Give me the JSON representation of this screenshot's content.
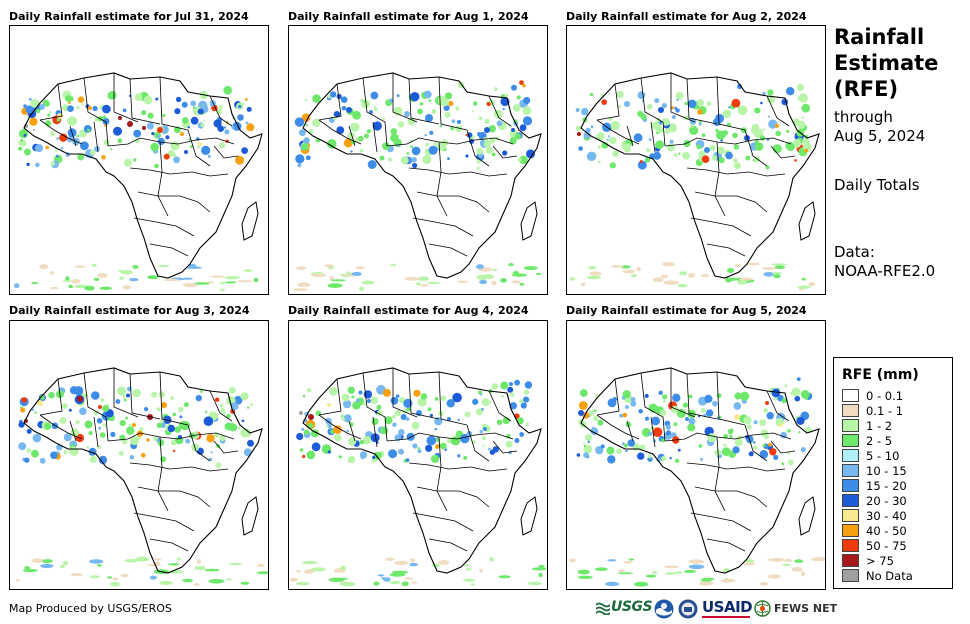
{
  "panels": [
    {
      "title": "Daily Rainfall estimate for Jul 31, 2024"
    },
    {
      "title": "Daily Rainfall estimate for Aug 1, 2024"
    },
    {
      "title": "Daily Rainfall estimate for Aug 2, 2024"
    },
    {
      "title": "Daily Rainfall estimate for Aug 3, 2024"
    },
    {
      "title": "Daily Rainfall estimate for Aug 4, 2024"
    },
    {
      "title": "Daily Rainfall estimate for Aug 5, 2024"
    }
  ],
  "sidebar": {
    "title_line1": "Rainfall",
    "title_line2": "Estimate",
    "title_line3": "(RFE)",
    "through_label": "through",
    "through_date": "Aug 5, 2024",
    "totals_label": "Daily Totals",
    "data_label": "Data:",
    "data_source": "NOAA-RFE2.0"
  },
  "legend": {
    "title": "RFE (mm)",
    "items": [
      {
        "label": "0 - 0.1",
        "color": "#ffffff"
      },
      {
        "label": "0.1 - 1",
        "color": "#f0dcc0"
      },
      {
        "label": "1 - 2",
        "color": "#b8f5a8"
      },
      {
        "label": "2 - 5",
        "color": "#6ee86a"
      },
      {
        "label": "5 - 10",
        "color": "#b0f0f8"
      },
      {
        "label": "10 - 15",
        "color": "#78b8f0"
      },
      {
        "label": "15 - 20",
        "color": "#3c8ce8"
      },
      {
        "label": "20 - 30",
        "color": "#1c5cd8"
      },
      {
        "label": "30 - 40",
        "color": "#f8e890"
      },
      {
        "label": "40 - 50",
        "color": "#f8a010"
      },
      {
        "label": "50 - 75",
        "color": "#f03c0c"
      },
      {
        "label": "> 75",
        "color": "#a81818"
      },
      {
        "label": "No Data",
        "color": "#a0a0a0"
      }
    ]
  },
  "footer": {
    "credit": "Map Produced by USGS/EROS"
  },
  "logos": {
    "usgs": "USGS",
    "usaid": "USAID",
    "fews": "FEWS NET"
  }
}
